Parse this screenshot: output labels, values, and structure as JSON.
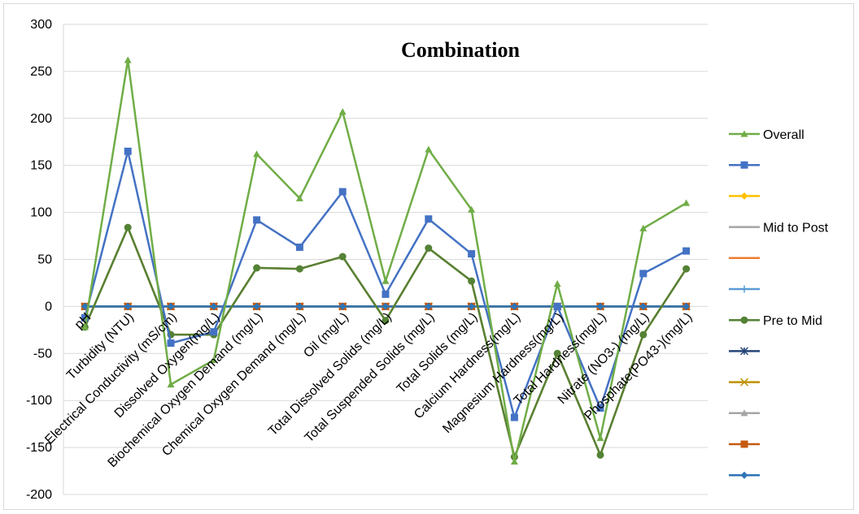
{
  "chart_data": {
    "type": "line",
    "title": "Combination",
    "xlabel": "",
    "ylabel": "",
    "ylim": [
      -200,
      300
    ],
    "yticks": [
      300,
      250,
      200,
      150,
      100,
      50,
      0,
      -50,
      -100,
      -150,
      -200
    ],
    "grid": true,
    "legend_position": "right",
    "categories": [
      "pH",
      "Turbidity (NTU)",
      "Electrical Conductivity (mS/cm)",
      "Dissolved Oxygen(mg/L)",
      "Biochemical Oxygen Demand (mg/L)",
      "Chemical Oxygen Demand (mg/L)",
      "Oil (mg/L)",
      "Total Dissolved Solids (mg/L)",
      "Total Suspended Solids (mg/L)",
      "Total Solids (mg/L)",
      "Calcium Hardness(mg/L)",
      "Magnesium Hardness(mg/L)",
      "Total Hardness(mg/L)",
      "Nitrate (NO3-) (mg/L)",
      "Phosphate(PO43-)(mg/L)"
    ],
    "series": [
      {
        "name": "Overall",
        "color": "#70ad47",
        "marker": "triangle",
        "values": [
          -22,
          262,
          -83,
          -57,
          162,
          115,
          207,
          27,
          167,
          103,
          -165,
          24,
          -140,
          83,
          110
        ]
      },
      {
        "name": "",
        "color": "#4472c4",
        "marker": "square",
        "values": [
          -12,
          165,
          -39,
          -27,
          92,
          63,
          122,
          13,
          93,
          56,
          -118,
          0,
          -108,
          35,
          59
        ]
      },
      {
        "name": "",
        "color": "#ffc000",
        "marker": "diamond",
        "values": [
          0,
          0,
          0,
          0,
          0,
          0,
          0,
          0,
          0,
          0,
          0,
          0,
          0,
          0,
          0
        ]
      },
      {
        "name": "Mid to Post",
        "color": "#a5a5a5",
        "marker": "none",
        "values": [
          0,
          0,
          0,
          0,
          0,
          0,
          0,
          0,
          0,
          0,
          0,
          0,
          0,
          0,
          0
        ]
      },
      {
        "name": "",
        "color": "#ed7d31",
        "marker": "none",
        "values": [
          -22,
          84,
          -30,
          -30,
          41,
          40,
          53,
          -15,
          62,
          27,
          -160,
          -50,
          -158,
          -30,
          40
        ]
      },
      {
        "name": "",
        "color": "#5b9bd5",
        "marker": "plus",
        "values": [
          0,
          0,
          0,
          0,
          0,
          0,
          0,
          0,
          0,
          0,
          0,
          0,
          0,
          0,
          0
        ]
      },
      {
        "name": "Pre to Mid",
        "color": "#548235",
        "marker": "circle",
        "values": [
          -22,
          84,
          -30,
          -30,
          41,
          40,
          53,
          -15,
          62,
          27,
          -160,
          -50,
          -158,
          -30,
          40
        ]
      },
      {
        "name": "",
        "color": "#264478",
        "marker": "star",
        "values": [
          0,
          0,
          0,
          0,
          0,
          0,
          0,
          0,
          0,
          0,
          0,
          0,
          0,
          0,
          0
        ]
      },
      {
        "name": "",
        "color": "#bf9000",
        "marker": "x",
        "values": [
          0,
          0,
          0,
          0,
          0,
          0,
          0,
          0,
          0,
          0,
          0,
          0,
          0,
          0,
          0
        ]
      },
      {
        "name": "",
        "color": "#a5a5a5",
        "marker": "triangle",
        "values": [
          0,
          0,
          0,
          0,
          0,
          0,
          0,
          0,
          0,
          0,
          0,
          0,
          0,
          0,
          0
        ]
      },
      {
        "name": "",
        "color": "#c55a11",
        "marker": "square",
        "values": [
          0,
          0,
          0,
          0,
          0,
          0,
          0,
          0,
          0,
          0,
          0,
          0,
          0,
          0,
          0
        ]
      },
      {
        "name": "",
        "color": "#2e75b6",
        "marker": "diamond",
        "values": [
          0,
          0,
          0,
          0,
          0,
          0,
          0,
          0,
          0,
          0,
          0,
          0,
          0,
          0,
          0
        ]
      }
    ],
    "legend": [
      {
        "label": "Overall",
        "color": "#70ad47",
        "marker": "triangle"
      },
      {
        "label": "",
        "color": "#4472c4",
        "marker": "square"
      },
      {
        "label": "",
        "color": "#ffc000",
        "marker": "diamond"
      },
      {
        "label": "Mid to Post",
        "color": "#a5a5a5",
        "marker": "none"
      },
      {
        "label": "",
        "color": "#ed7d31",
        "marker": "none"
      },
      {
        "label": "",
        "color": "#5b9bd5",
        "marker": "plus"
      },
      {
        "label": "Pre to Mid",
        "color": "#548235",
        "marker": "circle"
      },
      {
        "label": "",
        "color": "#264478",
        "marker": "star"
      },
      {
        "label": "",
        "color": "#bf9000",
        "marker": "x"
      },
      {
        "label": "",
        "color": "#a5a5a5",
        "marker": "triangle"
      },
      {
        "label": "",
        "color": "#c55a11",
        "marker": "square"
      },
      {
        "label": "",
        "color": "#2e75b6",
        "marker": "diamond"
      }
    ]
  }
}
